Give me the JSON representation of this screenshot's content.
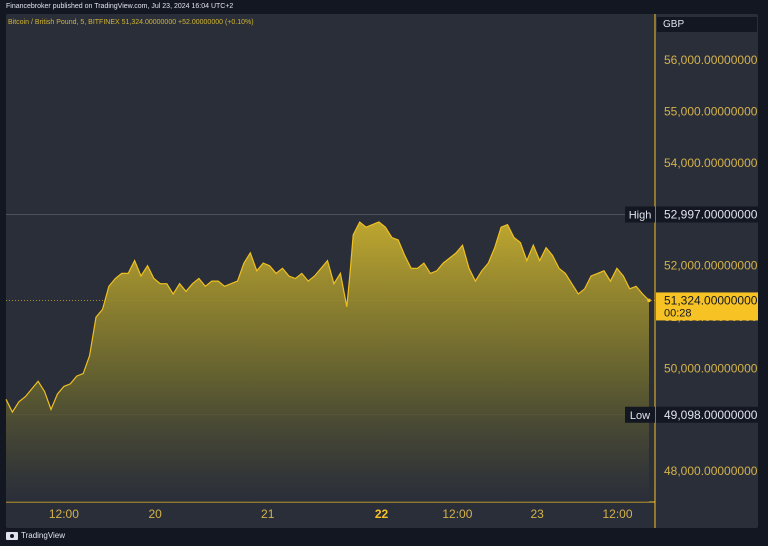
{
  "header": {
    "published_text": "Financebroker published on TradingView.com, Jul 23, 2024 16:04 UTC+2"
  },
  "chart_header": {
    "symbol_text": "Bitcoin / British Pound, 5, BITFINEX  51,324.00000000  +52.00000000 (+0.10%)",
    "currency": "GBP"
  },
  "footer": {
    "brand": "TradingView",
    "logo_icon": "tradingview-logo-icon"
  },
  "colors": {
    "line": "#f0c020",
    "accent": "#f7c324",
    "text": "#e0e3eb",
    "axis_text": "#d4b24a"
  },
  "chart_data": {
    "type": "area",
    "title": "",
    "xlabel": "",
    "ylabel": "",
    "ylim": [
      47400,
      56900
    ],
    "xlim": [
      0,
      100
    ],
    "y_ticks": [
      48000,
      50000,
      51000,
      52000,
      53000,
      54000,
      55000,
      56000
    ],
    "y_tick_labels": [
      "48,000.00000000",
      "50,000.00000000",
      "51,000.00000000",
      "52,000.00000000",
      "53,000.00000000",
      "54,000.00000000",
      "55,000.00000000",
      "56,000.00000000"
    ],
    "x_ticks": [
      {
        "x": 9,
        "label": "12:00",
        "bold": false
      },
      {
        "x": 23.2,
        "label": "20",
        "bold": false
      },
      {
        "x": 40.7,
        "label": "21",
        "bold": false
      },
      {
        "x": 58.4,
        "label": "22",
        "bold": true
      },
      {
        "x": 70.2,
        "label": "12:00",
        "bold": false
      },
      {
        "x": 82.6,
        "label": "23",
        "bold": false
      },
      {
        "x": 95.1,
        "label": "12:00",
        "bold": false
      }
    ],
    "markers": {
      "high": {
        "label": "High",
        "value": 52997,
        "value_text": "52,997.00000000"
      },
      "low": {
        "label": "Low",
        "value": 49098,
        "value_text": "49,098.00000000"
      },
      "last": {
        "value": 51324,
        "value_text": "51,324.00000000",
        "countdown": "00:28"
      }
    },
    "x": [
      0,
      1,
      2,
      3,
      4,
      5,
      6,
      7,
      8,
      9,
      10,
      11,
      12,
      13,
      14,
      15,
      16,
      17,
      18,
      19,
      20,
      21,
      22,
      23,
      24,
      25,
      26,
      27,
      28,
      29,
      30,
      31,
      32,
      33,
      34,
      35,
      36,
      37,
      38,
      39,
      40,
      41,
      42,
      43,
      44,
      45,
      46,
      47,
      48,
      49,
      50,
      51,
      52,
      53,
      53.5,
      54,
      55,
      56,
      57,
      58,
      59,
      60,
      61,
      62,
      63,
      64,
      65,
      66,
      67,
      68,
      69,
      70,
      71,
      72,
      73,
      74,
      75,
      76,
      77,
      78,
      79,
      80,
      81,
      82,
      83,
      84,
      85,
      86,
      87,
      88,
      89,
      90,
      91,
      92,
      93,
      94,
      95,
      96,
      97,
      98,
      99,
      100
    ],
    "values": [
      49400,
      49150,
      49350,
      49450,
      49600,
      49750,
      49550,
      49200,
      49500,
      49650,
      49700,
      49850,
      49900,
      50250,
      51000,
      51150,
      51600,
      51750,
      51850,
      51850,
      52100,
      51800,
      52000,
      51750,
      51650,
      51650,
      51450,
      51650,
      51500,
      51650,
      51750,
      51600,
      51700,
      51700,
      51600,
      51650,
      51700,
      52050,
      52250,
      51900,
      52050,
      52000,
      51850,
      51950,
      51800,
      51750,
      51850,
      51700,
      51800,
      51950,
      52100,
      51650,
      51850,
      51200,
      51850,
      52600,
      52850,
      52750,
      52800,
      52850,
      52750,
      52550,
      52500,
      52200,
      51950,
      51950,
      52050,
      51850,
      51900,
      52050,
      52150,
      52250,
      52400,
      51950,
      51700,
      51900,
      52050,
      52350,
      52750,
      52800,
      52550,
      52450,
      52100,
      52400,
      52100,
      52350,
      52200,
      51950,
      51850,
      51650,
      51450,
      51550,
      51800,
      51850,
      51900,
      51700,
      51950,
      51800,
      51550,
      51600,
      51450,
      51324
    ]
  }
}
